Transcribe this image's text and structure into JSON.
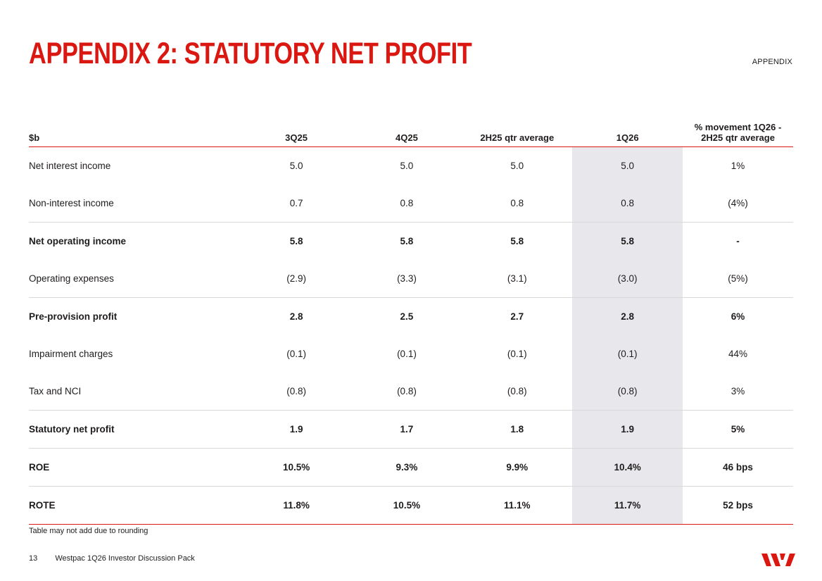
{
  "header": {
    "title": "APPENDIX 2: STATUTORY NET PROFIT",
    "section_tag": "APPENDIX"
  },
  "table": {
    "columns": [
      "$b",
      "3Q25",
      "4Q25",
      "2H25 qtr average",
      "1Q26",
      "% movement 1Q26 - 2H25 qtr average"
    ],
    "rows": [
      {
        "label": "Net interest income",
        "v3q25": "5.0",
        "v4q25": "5.0",
        "v2h25": "5.0",
        "v1q26": "5.0",
        "mov": "1%"
      },
      {
        "label": "Non-interest income",
        "v3q25": "0.7",
        "v4q25": "0.8",
        "v2h25": "0.8",
        "v1q26": "0.8",
        "mov": "(4%)"
      },
      {
        "label": "Net operating income",
        "v3q25": "5.8",
        "v4q25": "5.8",
        "v2h25": "5.8",
        "v1q26": "5.8",
        "mov": "-"
      },
      {
        "label": "Operating expenses",
        "v3q25": "(2.9)",
        "v4q25": "(3.3)",
        "v2h25": "(3.1)",
        "v1q26": "(3.0)",
        "mov": "(5%)"
      },
      {
        "label": "Pre-provision profit",
        "v3q25": "2.8",
        "v4q25": "2.5",
        "v2h25": "2.7",
        "v1q26": "2.8",
        "mov": "6%"
      },
      {
        "label": "Impairment charges",
        "v3q25": "(0.1)",
        "v4q25": "(0.1)",
        "v2h25": "(0.1)",
        "v1q26": "(0.1)",
        "mov": "44%"
      },
      {
        "label": "Tax and NCI",
        "v3q25": "(0.8)",
        "v4q25": "(0.8)",
        "v2h25": "(0.8)",
        "v1q26": "(0.8)",
        "mov": "3%"
      },
      {
        "label": "Statutory net profit",
        "v3q25": "1.9",
        "v4q25": "1.7",
        "v2h25": "1.8",
        "v1q26": "1.9",
        "mov": "5%"
      },
      {
        "label": "ROE",
        "v3q25": "10.5%",
        "v4q25": "9.3%",
        "v2h25": "9.9%",
        "v1q26": "10.4%",
        "mov": "46 bps"
      },
      {
        "label": "ROTE",
        "v3q25": "11.8%",
        "v4q25": "10.5%",
        "v2h25": "11.1%",
        "v1q26": "11.7%",
        "mov": "52 bps"
      }
    ]
  },
  "note": "Table may not add due to rounding",
  "footer": {
    "page_number": "13",
    "document_title": "Westpac 1Q26 Investor Discussion Pack",
    "logo_icon": "westpac-logo-icon"
  },
  "colors": {
    "brand_red": "#da1710",
    "highlight_column": "#e8e7ec",
    "rule_grey": "#d8d8d8"
  }
}
